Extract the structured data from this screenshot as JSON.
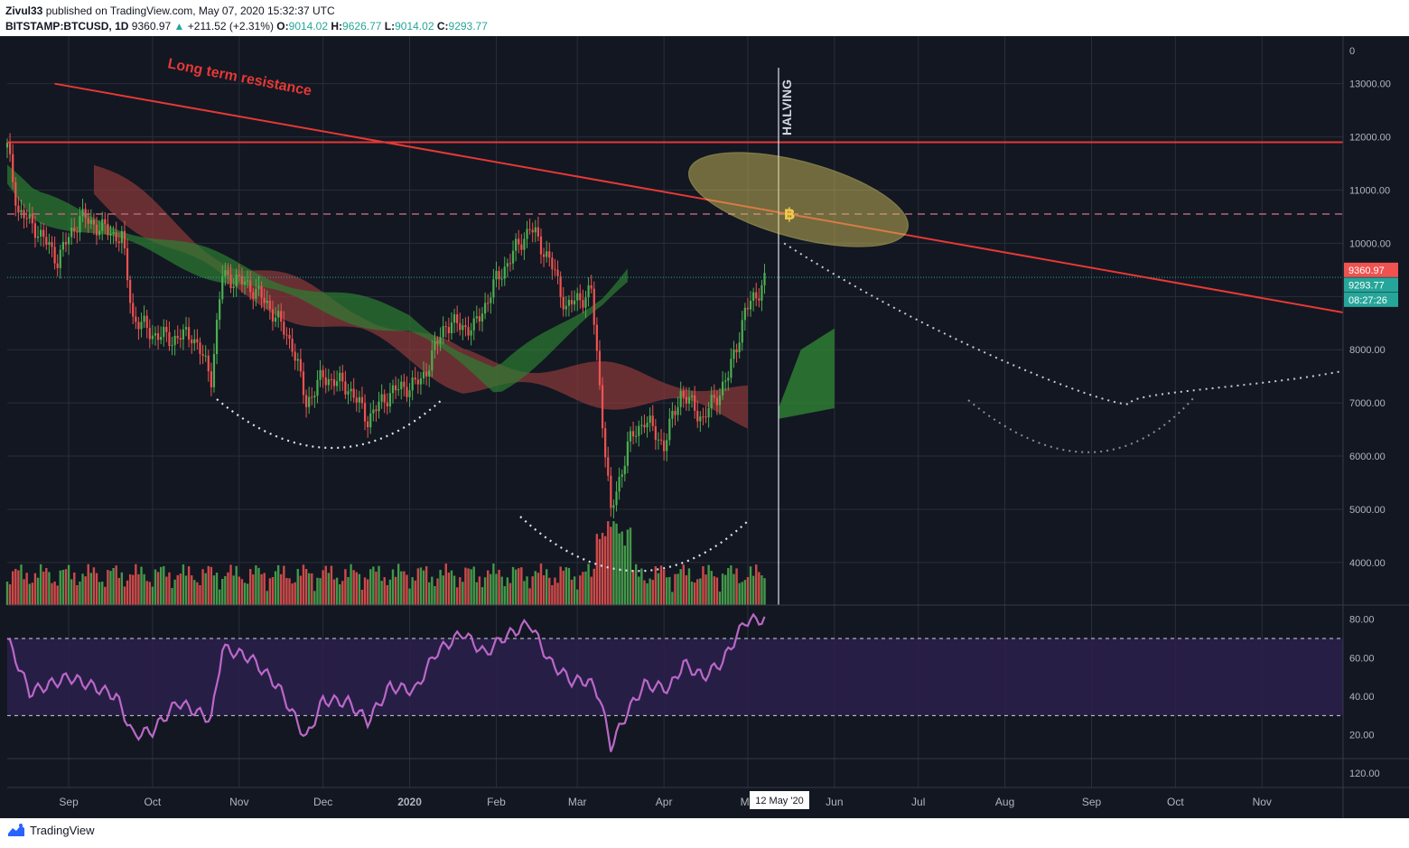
{
  "header": {
    "author": "Zivul33",
    "published_text": "published on TradingView.com, May 07, 2020 15:32:37 UTC",
    "symbol": "BITSTAMP:BTCUSD, 1D",
    "last": "9360.97",
    "change": "+211.52 (+2.31%)",
    "o_label": "O:",
    "o": "9014.02",
    "h_label": "H:",
    "h": "9626.77",
    "l_label": "L:",
    "l": "9014.02",
    "c_label": "C:",
    "c": "9293.77"
  },
  "colors": {
    "background": "#131722",
    "up": "#26a69a",
    "bull_candle": "#4caf50",
    "bear_candle": "#ef5350",
    "resistance": "#e53935",
    "rsi_line": "#ba68c8",
    "cloud_bull": "#2e7d32",
    "cloud_bear": "#8d3a3a",
    "highlight_ellipse": "#cdbd5a",
    "price_tag": "#ef5350",
    "close_tag": "#26a69a"
  },
  "chart_data": {
    "type": "candlestick",
    "annotations": [
      "Long term resistance",
      "HALVING"
    ],
    "price_axis": [
      "13000.00",
      "12000.00",
      "11000.00",
      "10000.00",
      "9000.00",
      "8000.00",
      "7000.00",
      "6000.00",
      "5000.00",
      "4000.00"
    ],
    "price_axis_top_label": "0",
    "price_tags": [
      "9360.97",
      "9293.77",
      "08:27:26"
    ],
    "rsi_axis": [
      "80.00",
      "60.00",
      "40.00",
      "20.00"
    ],
    "extra_axis": "120.00",
    "time_axis": [
      "Sep",
      "Oct",
      "Nov",
      "Dec",
      "2020",
      "Feb",
      "Mar",
      "Apr",
      "Ma",
      "Jun",
      "Jul",
      "Aug",
      "Sep",
      "Oct",
      "Nov"
    ],
    "crosshair_date": "12 May '20",
    "ylim": [
      3200,
      13300
    ],
    "rsi_ylim": [
      10,
      85
    ],
    "rsi_levels": [
      70,
      30
    ],
    "horizontal_levels": [
      11900,
      10550
    ],
    "price_path": [
      [
        "2019-08-10",
        11800
      ],
      [
        "2019-08-14",
        10600
      ],
      [
        "2019-08-20",
        10300
      ],
      [
        "2019-08-28",
        9700
      ],
      [
        "2019-09-05",
        10500
      ],
      [
        "2019-09-12",
        10300
      ],
      [
        "2019-09-20",
        10100
      ],
      [
        "2019-09-24",
        8600
      ],
      [
        "2019-10-01",
        8300
      ],
      [
        "2019-10-08",
        8200
      ],
      [
        "2019-10-15",
        8300
      ],
      [
        "2019-10-22",
        7500
      ],
      [
        "2019-10-26",
        9400
      ],
      [
        "2019-11-05",
        9200
      ],
      [
        "2019-11-12",
        8800
      ],
      [
        "2019-11-20",
        8100
      ],
      [
        "2019-11-25",
        7000
      ],
      [
        "2019-12-01",
        7500
      ],
      [
        "2019-12-10",
        7300
      ],
      [
        "2019-12-17",
        6700
      ],
      [
        "2019-12-25",
        7200
      ],
      [
        "2020-01-05",
        7400
      ],
      [
        "2020-01-14",
        8500
      ],
      [
        "2020-01-24",
        8400
      ],
      [
        "2020-02-01",
        9300
      ],
      [
        "2020-02-13",
        10300
      ],
      [
        "2020-02-20",
        9700
      ],
      [
        "2020-02-26",
        8800
      ],
      [
        "2020-03-06",
        9100
      ],
      [
        "2020-03-12",
        5500
      ],
      [
        "2020-03-13",
        4900
      ],
      [
        "2020-03-19",
        6200
      ],
      [
        "2020-03-25",
        6700
      ],
      [
        "2020-04-01",
        6200
      ],
      [
        "2020-04-07",
        7200
      ],
      [
        "2020-04-15",
        6700
      ],
      [
        "2020-04-24",
        7500
      ],
      [
        "2020-04-30",
        8700
      ],
      [
        "2020-05-07",
        9300
      ]
    ],
    "cloud_bull": [
      [
        "2019-08-10",
        11300
      ],
      [
        "2019-08-20",
        10700
      ],
      [
        "2019-12-01",
        8900
      ],
      [
        "2020-01-01",
        8500
      ],
      [
        "2020-02-01",
        7400
      ],
      [
        "2020-03-10",
        8900
      ],
      [
        "2020-03-19",
        9400
      ]
    ],
    "cloud_bear": [
      [
        "2019-09-10",
        11200
      ],
      [
        "2019-11-01",
        9300
      ],
      [
        "2019-12-15",
        8500
      ],
      [
        "2020-01-20",
        7600
      ],
      [
        "2020-04-05",
        7200
      ],
      [
        "2020-05-03",
        6900
      ]
    ],
    "resistance_line": [
      [
        "2019-08-27",
        13000
      ],
      [
        "2020-11-30",
        8700
      ]
    ],
    "halving_date": "2020-05-12",
    "projection": [
      [
        "2020-05-14",
        10000
      ],
      [
        "2020-07-15",
        7900
      ],
      [
        "2020-09-15",
        7000
      ],
      [
        "2020-11-30",
        7600
      ]
    ],
    "rsi": [
      [
        "2019-08-10",
        70
      ],
      [
        "2019-08-18",
        42
      ],
      [
        "2019-09-01",
        50
      ],
      [
        "2019-09-10",
        45
      ],
      [
        "2019-09-18",
        40
      ],
      [
        "2019-09-24",
        20
      ],
      [
        "2019-10-01",
        22
      ],
      [
        "2019-10-10",
        37
      ],
      [
        "2019-10-22",
        28
      ],
      [
        "2019-10-26",
        65
      ],
      [
        "2019-11-05",
        60
      ],
      [
        "2019-11-15",
        45
      ],
      [
        "2019-11-25",
        18
      ],
      [
        "2019-12-01",
        38
      ],
      [
        "2019-12-10",
        37
      ],
      [
        "2019-12-17",
        27
      ],
      [
        "2019-12-25",
        45
      ],
      [
        "2020-01-03",
        43
      ],
      [
        "2020-01-10",
        62
      ],
      [
        "2020-01-20",
        73
      ],
      [
        "2020-01-28",
        62
      ],
      [
        "2020-02-03",
        70
      ],
      [
        "2020-02-13",
        78
      ],
      [
        "2020-02-20",
        58
      ],
      [
        "2020-02-28",
        48
      ],
      [
        "2020-03-05",
        48
      ],
      [
        "2020-03-09",
        40
      ],
      [
        "2020-03-13",
        14
      ],
      [
        "2020-03-19",
        32
      ],
      [
        "2020-03-25",
        46
      ],
      [
        "2020-04-03",
        44
      ],
      [
        "2020-04-08",
        57
      ],
      [
        "2020-04-15",
        50
      ],
      [
        "2020-04-22",
        58
      ],
      [
        "2020-04-30",
        79
      ],
      [
        "2020-05-07",
        80
      ]
    ]
  },
  "footer": {
    "brand": "TradingView"
  }
}
